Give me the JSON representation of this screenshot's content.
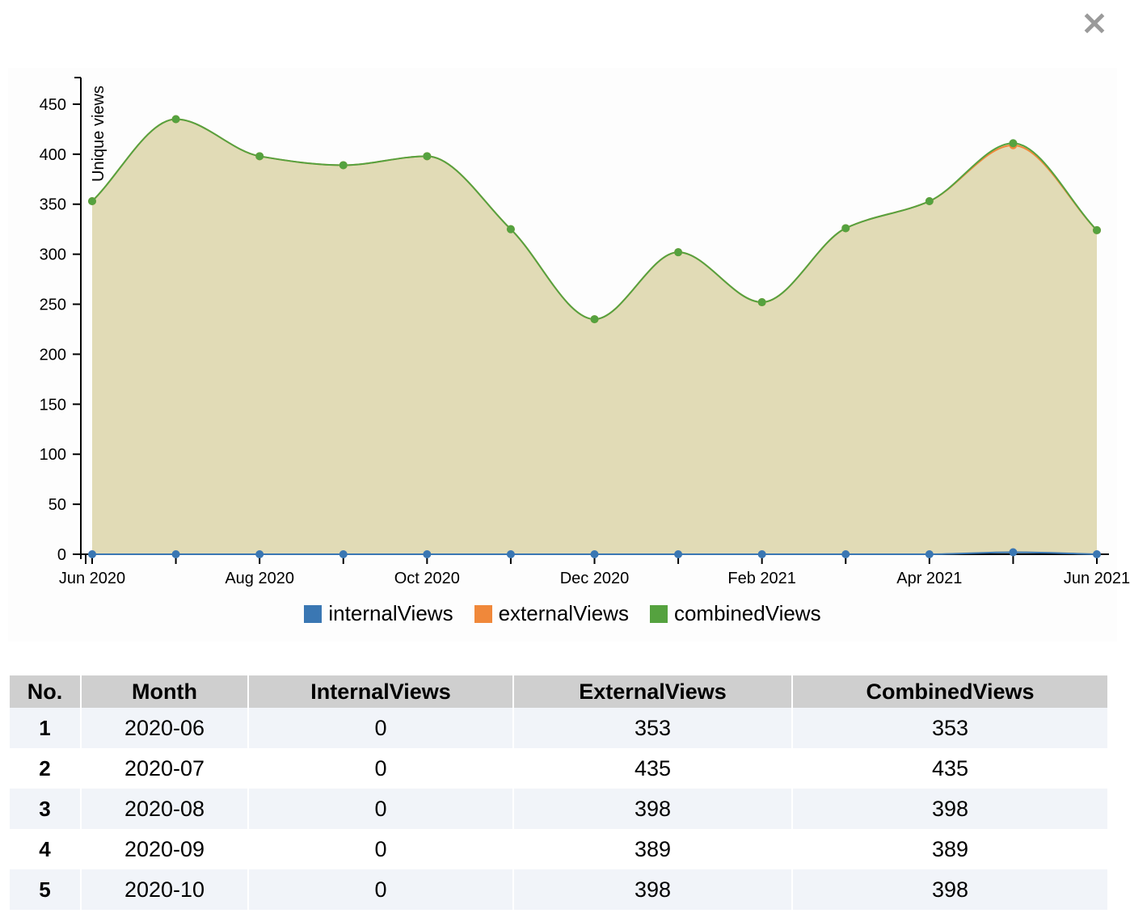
{
  "close_icon": "×",
  "chart_data": {
    "type": "area",
    "ylabel": "Unique views",
    "ylim": [
      0,
      475
    ],
    "yticks": [
      0,
      50,
      100,
      150,
      200,
      250,
      300,
      350,
      400,
      450
    ],
    "x_dates": [
      "2020-06",
      "2020-07",
      "2020-08",
      "2020-09",
      "2020-10",
      "2020-11",
      "2020-12",
      "2021-01",
      "2021-02",
      "2021-03",
      "2021-04",
      "2021-05",
      "2021-06"
    ],
    "x_ticks_labeled": [
      {
        "date": "2020-06",
        "label": "Jun 2020"
      },
      {
        "date": "2020-08",
        "label": "Aug 2020"
      },
      {
        "date": "2020-10",
        "label": "Oct 2020"
      },
      {
        "date": "2020-12",
        "label": "Dec 2020"
      },
      {
        "date": "2021-02",
        "label": "Feb 2021"
      },
      {
        "date": "2021-04",
        "label": "Apr 2021"
      },
      {
        "date": "2021-06",
        "label": "Jun 2021"
      }
    ],
    "series": [
      {
        "name": "internalViews",
        "color": "#3a77b3",
        "values": [
          0,
          0,
          0,
          0,
          0,
          0,
          0,
          0,
          0,
          0,
          0,
          2,
          0
        ]
      },
      {
        "name": "externalViews",
        "color": "#f0883a",
        "values": [
          353,
          435,
          398,
          389,
          398,
          325,
          235,
          302,
          252,
          326,
          353,
          409,
          324
        ]
      },
      {
        "name": "combinedViews",
        "color": "#55a23f",
        "values": [
          353,
          435,
          398,
          389,
          398,
          325,
          235,
          302,
          252,
          326,
          353,
          411,
          324
        ]
      }
    ],
    "grid": false,
    "legend_position": "bottom-center"
  },
  "table": {
    "headers": [
      "No.",
      "Month",
      "InternalViews",
      "ExternalViews",
      "CombinedViews"
    ],
    "rows": [
      [
        "1",
        "2020-06",
        "0",
        "353",
        "353"
      ],
      [
        "2",
        "2020-07",
        "0",
        "435",
        "435"
      ],
      [
        "3",
        "2020-08",
        "0",
        "398",
        "398"
      ],
      [
        "4",
        "2020-09",
        "0",
        "389",
        "389"
      ],
      [
        "5",
        "2020-10",
        "0",
        "398",
        "398"
      ]
    ]
  }
}
